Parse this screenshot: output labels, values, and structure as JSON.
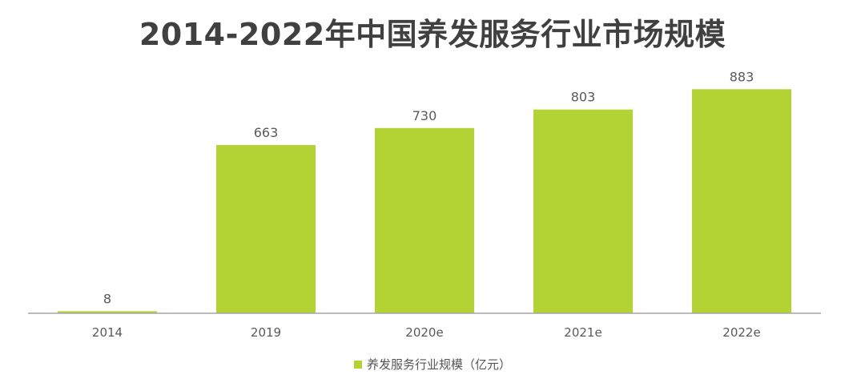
{
  "title": "2014-2022年中国养发服务行业市场规模",
  "colors": {
    "bar": "#b3d334",
    "axis": "#a6a6a6",
    "title": "#404040",
    "label": "#595959"
  },
  "chart_data": {
    "type": "bar",
    "categories": [
      "2014",
      "2019",
      "2020e",
      "2021e",
      "2022e"
    ],
    "series": [
      {
        "name": "养发服务行业规模（亿元）",
        "values": [
          8,
          663,
          730,
          803,
          883
        ],
        "labels": [
          "8",
          "663",
          "730",
          "803",
          "883"
        ]
      }
    ],
    "title": "2014-2022年中国养发服务行业市场规模",
    "ylim": [
      0,
      1000
    ],
    "grid": false,
    "legend_position": "bottom"
  }
}
